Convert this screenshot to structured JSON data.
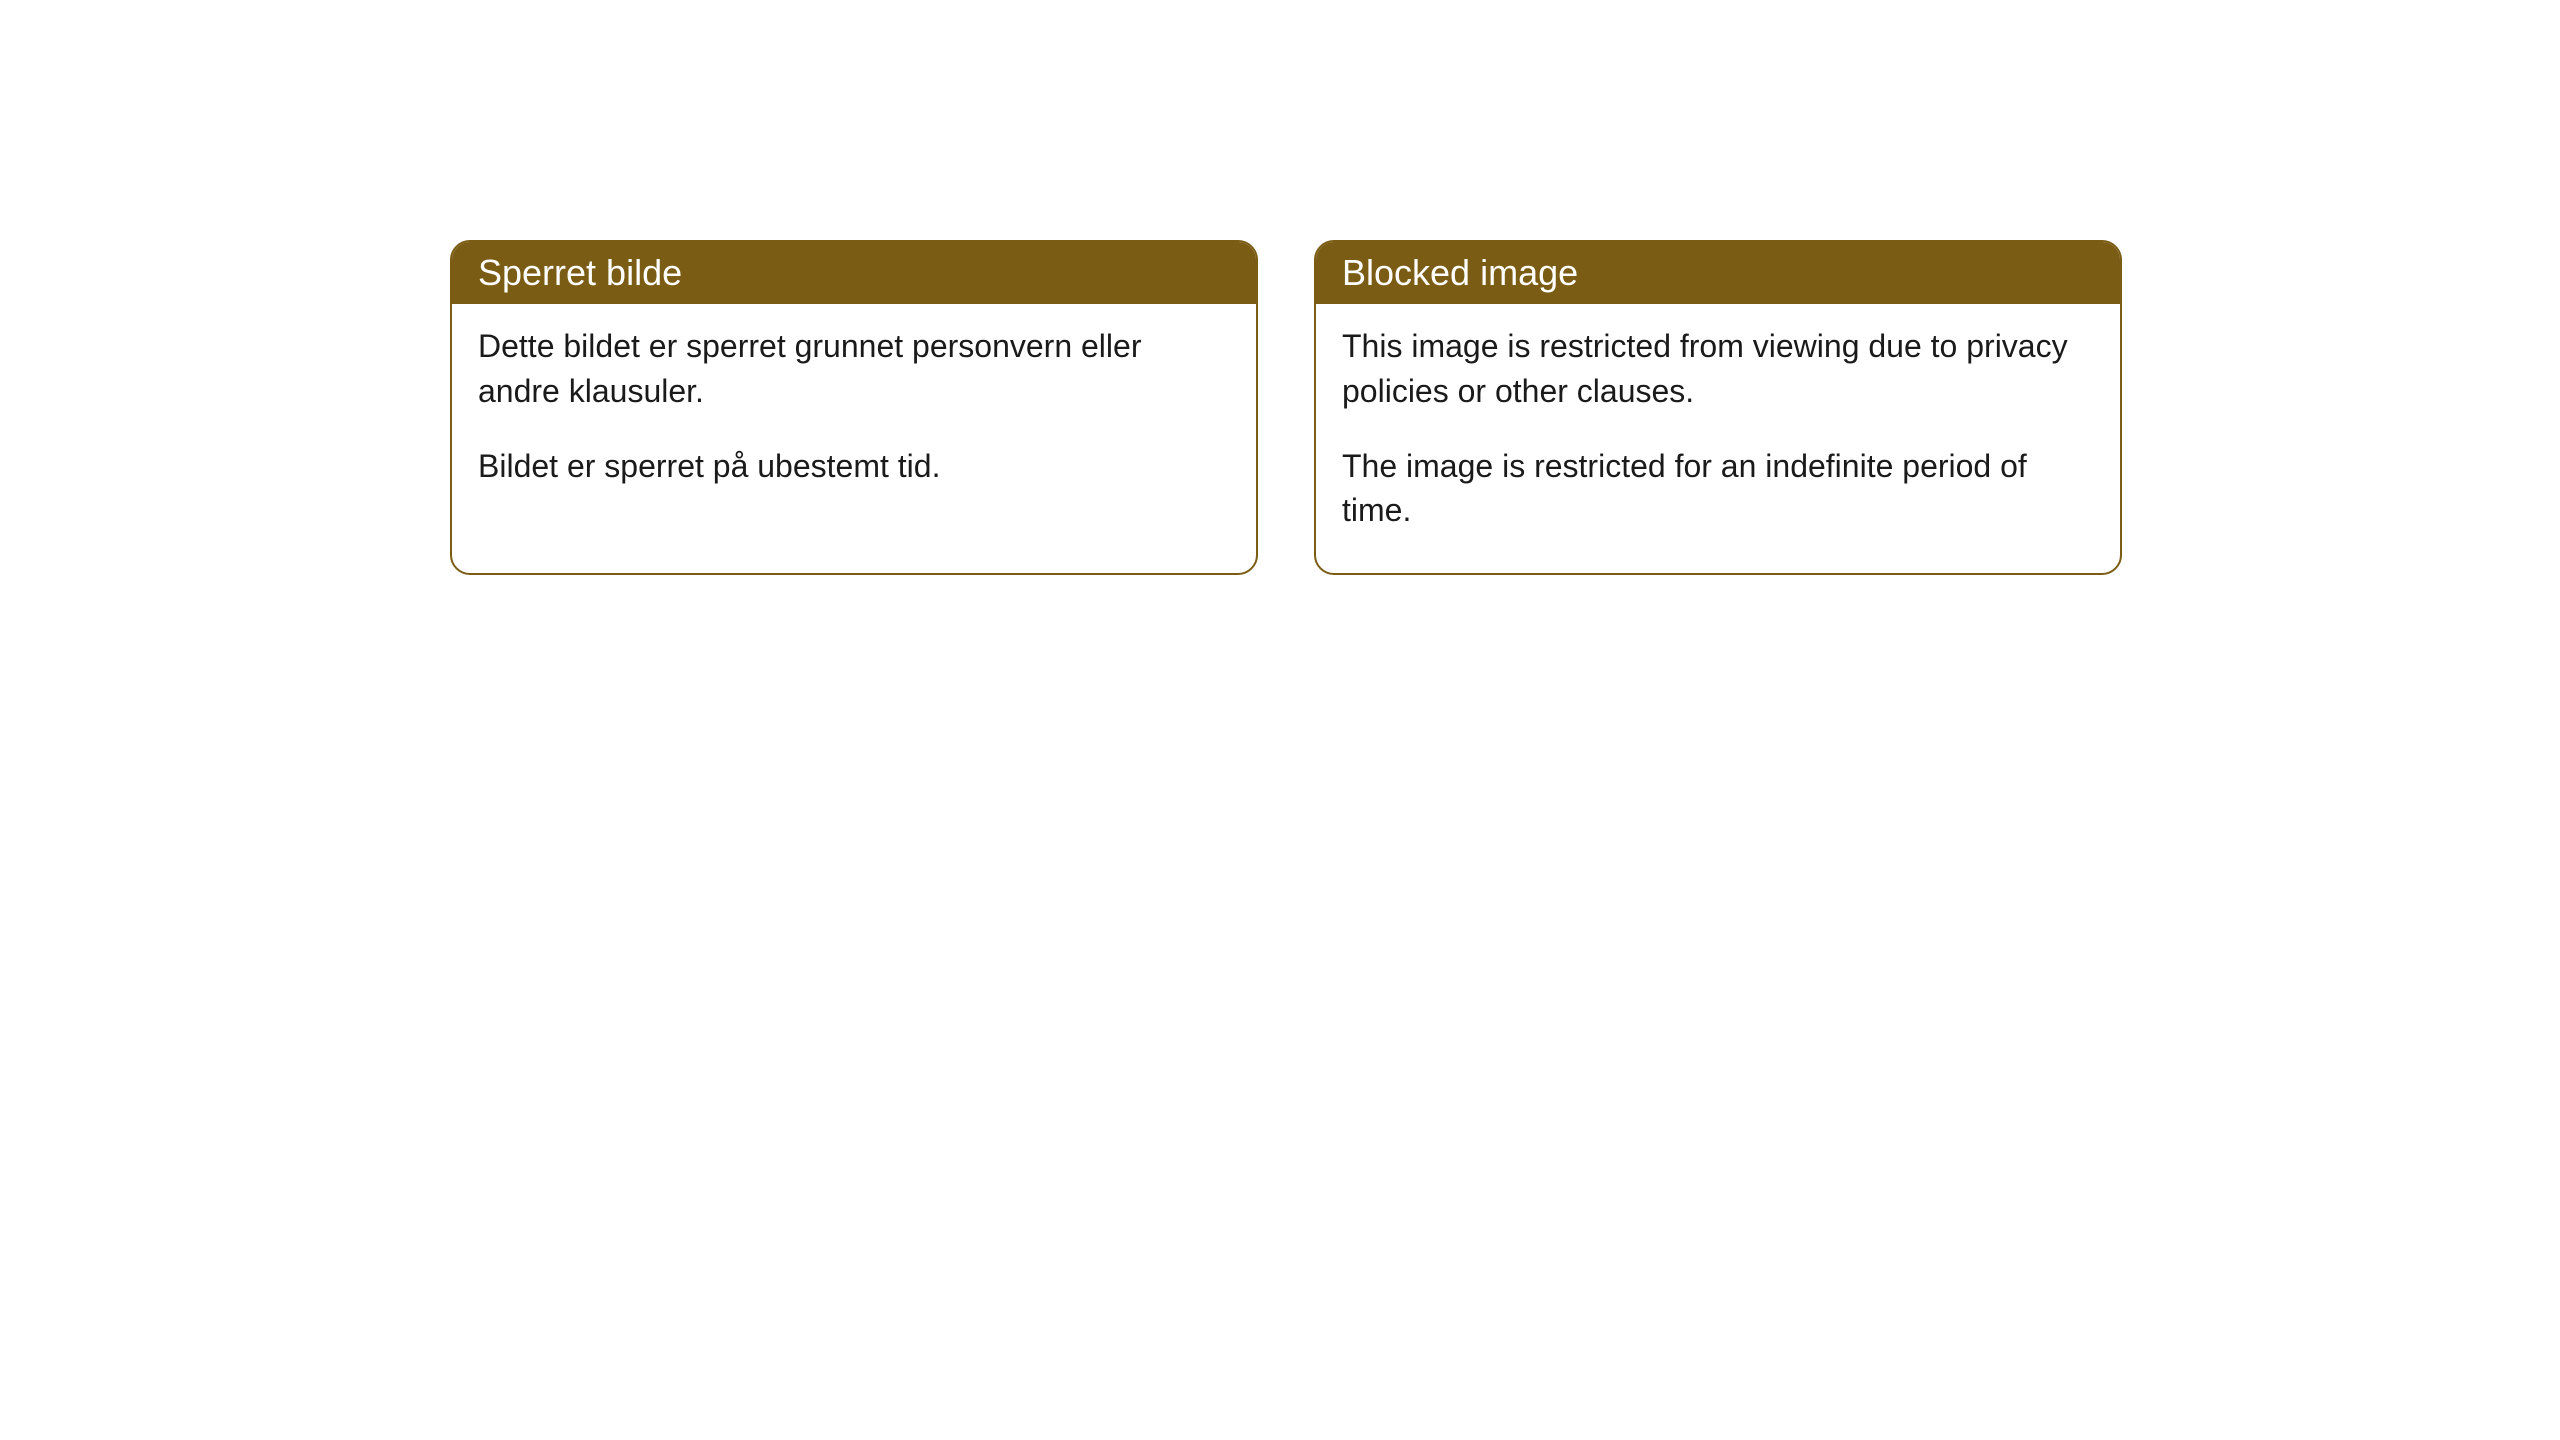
{
  "cards": [
    {
      "title": "Sperret bilde",
      "paragraph1": "Dette bildet er sperret grunnet personvern eller andre klausuler.",
      "paragraph2": "Bildet er sperret på ubestemt tid."
    },
    {
      "title": "Blocked image",
      "paragraph1": "This image is restricted from viewing due to privacy policies or other clauses.",
      "paragraph2": "The image is restricted for an indefinite period of time."
    }
  ],
  "styling": {
    "header_bg_color": "#7a5c14",
    "header_text_color": "#ffffff",
    "border_color": "#7a5c14",
    "body_bg_color": "#ffffff",
    "body_text_color": "#1a1a1a",
    "border_radius": 20,
    "header_font_size": 36,
    "body_font_size": 32
  }
}
